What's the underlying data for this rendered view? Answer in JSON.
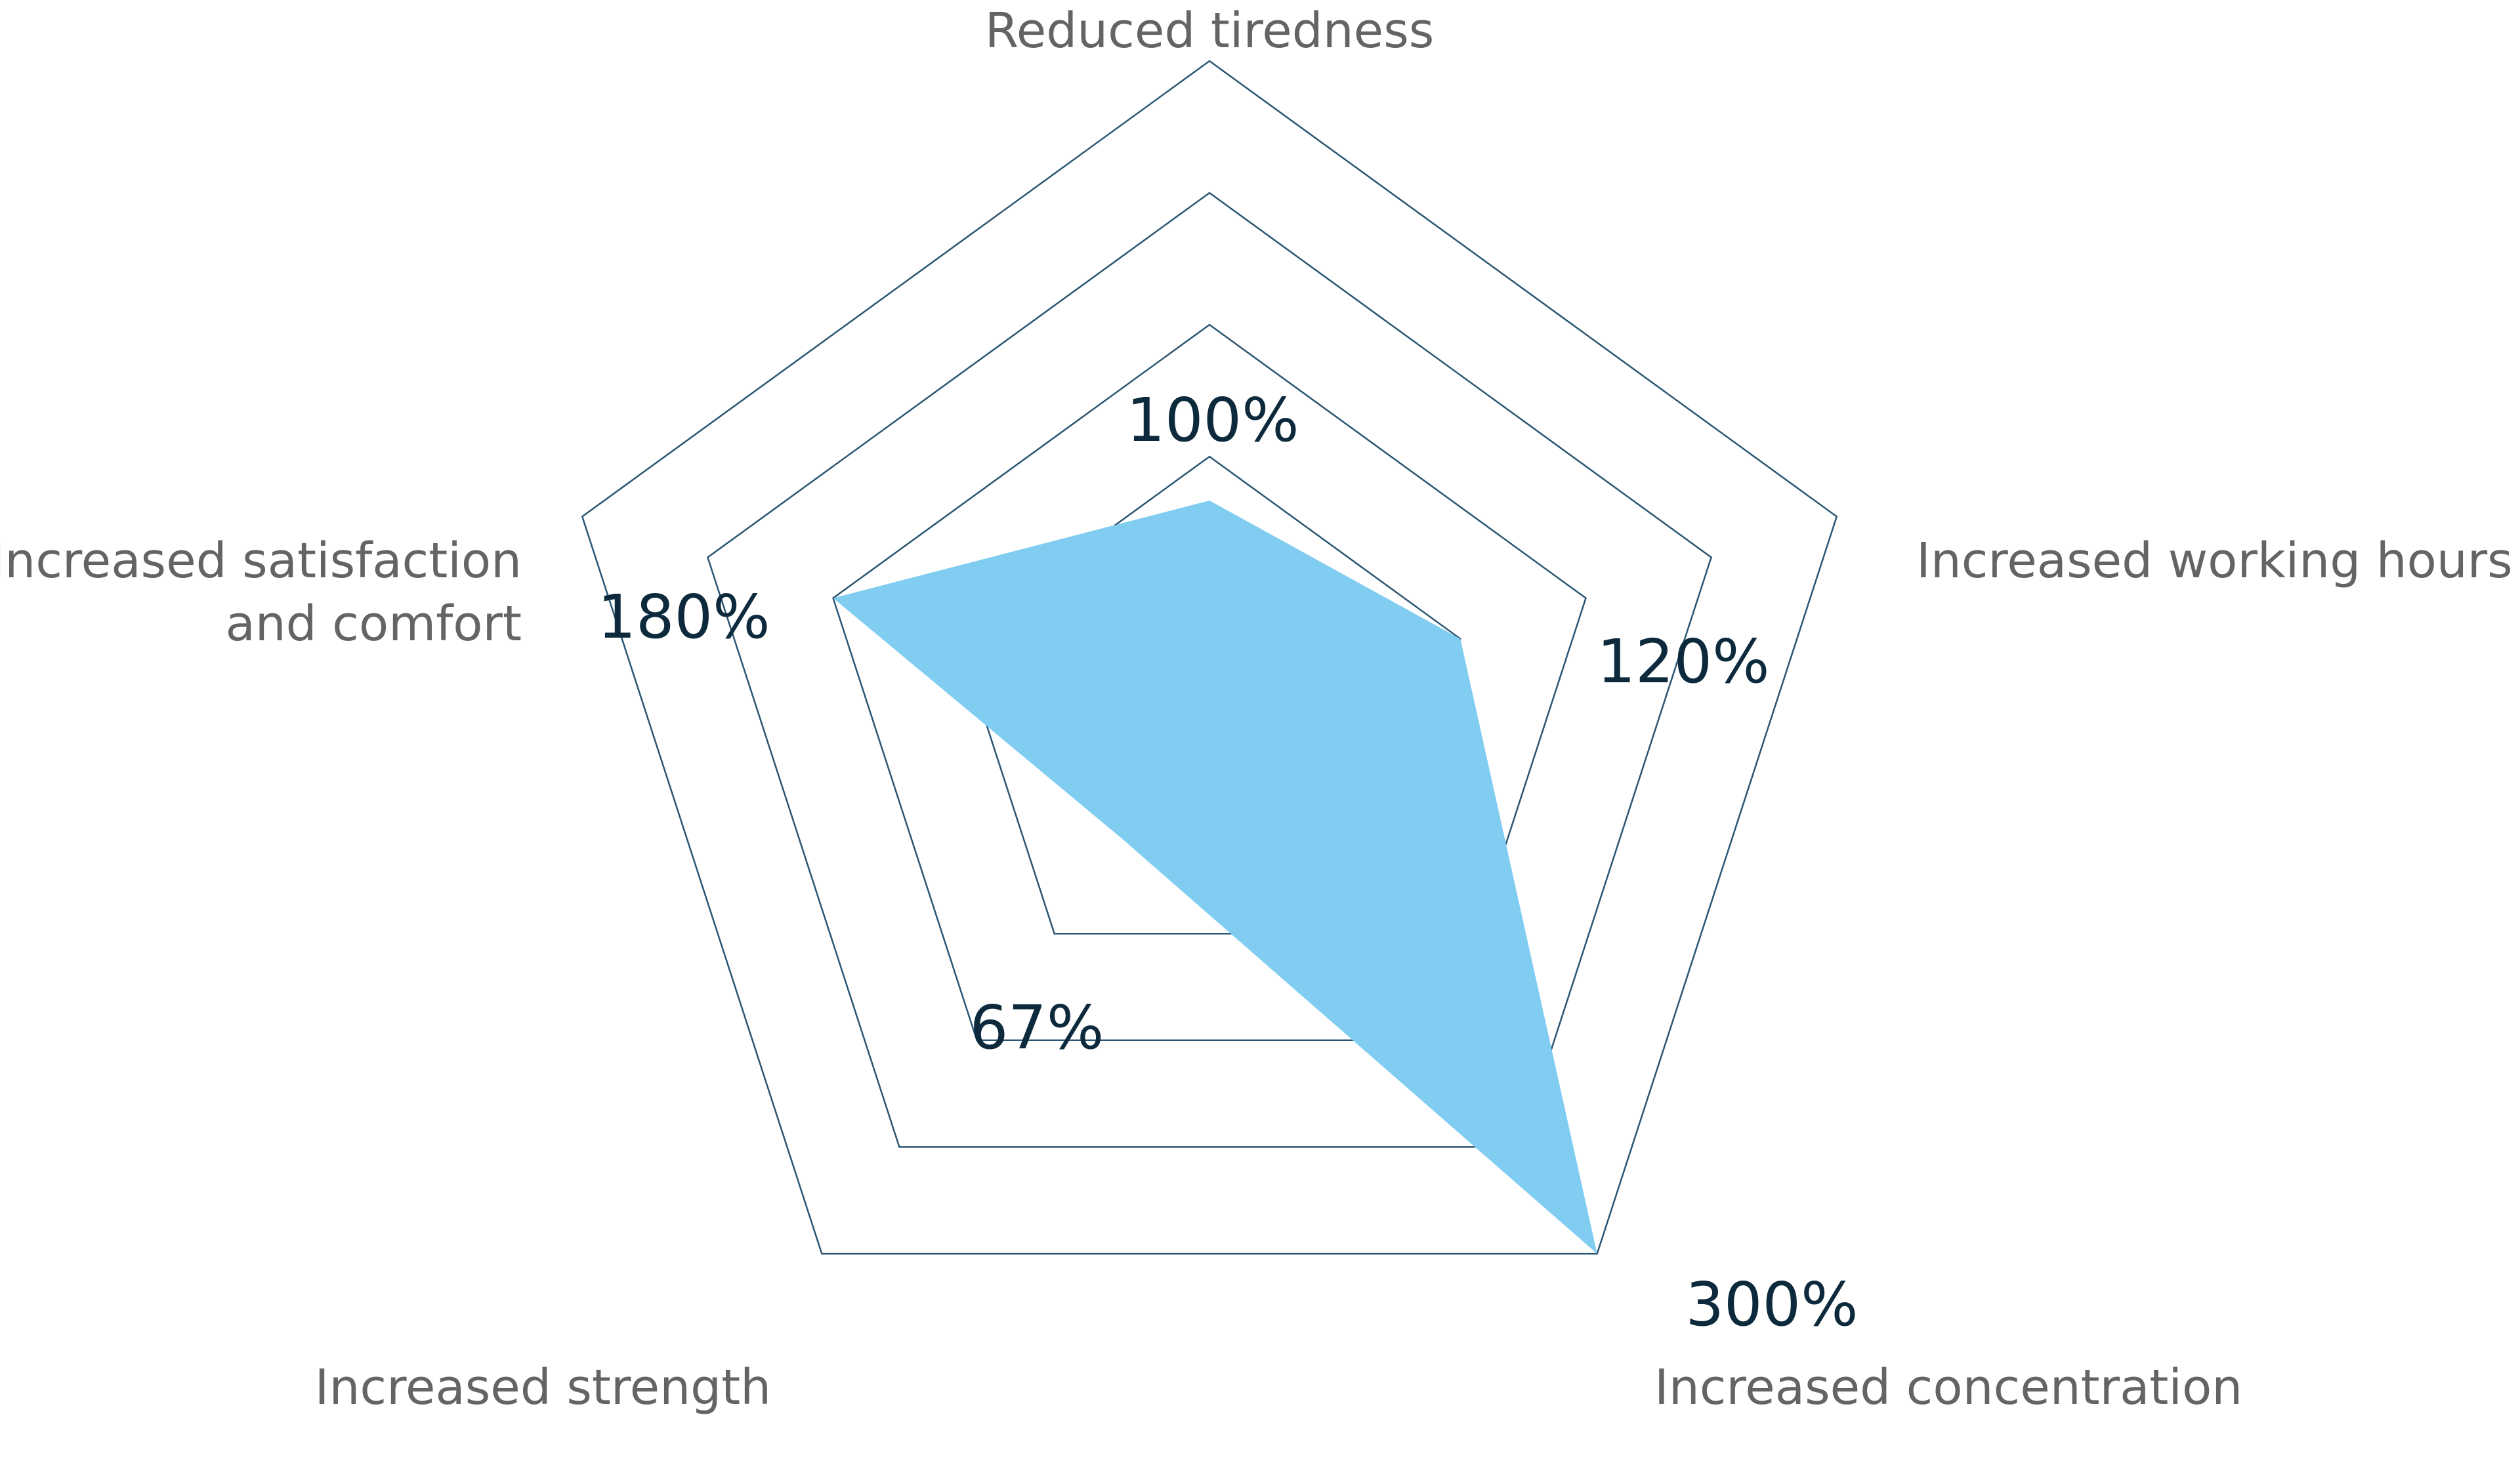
{
  "chart_data": {
    "type": "radar",
    "categories": [
      "Reduced tiredness",
      "Increased working hours",
      "Increased concentration",
      "Increased strength",
      "Increased satisfaction and comfort"
    ],
    "category_lines": [
      [
        "Reduced tiredness"
      ],
      [
        "Increased working hours"
      ],
      [
        "Increased concentration"
      ],
      [
        "Increased strength"
      ],
      [
        "Increased satisfaction",
        "and comfort"
      ]
    ],
    "series": [
      {
        "values": [
          100,
          120,
          300,
          67,
          180
        ],
        "value_labels": [
          "100%",
          "120%",
          "300%",
          "67%",
          "180%"
        ],
        "color": "#81cdf2"
      }
    ],
    "rlim": [
      0,
      300
    ],
    "rings": 5,
    "grid_color": "#2b5673",
    "label_color": "#636466",
    "value_color": "#0d2a3c",
    "legend": "none"
  }
}
